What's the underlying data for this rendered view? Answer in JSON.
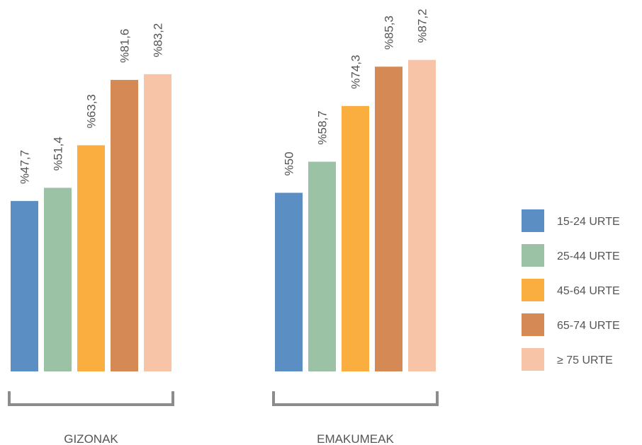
{
  "chart_data": {
    "type": "bar",
    "categories": [
      "GIZONAK",
      "EMAKUMEAK"
    ],
    "series": [
      {
        "name": "15-24 URTE",
        "values": [
          47.7,
          50
        ],
        "labels": [
          "%47,7",
          "%50"
        ],
        "color": "#5B8FC3"
      },
      {
        "name": "25-44 URTE",
        "values": [
          51.4,
          58.7
        ],
        "labels": [
          "%51,4",
          "%58,7"
        ],
        "color": "#9BC2A5"
      },
      {
        "name": "45-64 URTE",
        "values": [
          63.3,
          74.3
        ],
        "labels": [
          "%63,3",
          "%74,3"
        ],
        "color": "#F9AE3F"
      },
      {
        "name": "65-74 URTE",
        "values": [
          81.6,
          85.3
        ],
        "labels": [
          "%81,6",
          "%85,3"
        ],
        "color": "#D58A55"
      },
      {
        "name": "≥ 75 URTE",
        "values": [
          83.2,
          87.2
        ],
        "labels": [
          "%83,2",
          "%87,2"
        ],
        "color": "#F7C4A8"
      }
    ],
    "ylim": [
      0,
      100
    ],
    "legend_position": "right",
    "grid": false
  },
  "colors": {
    "bracket": "#8C8C8C",
    "text": "#555555"
  }
}
